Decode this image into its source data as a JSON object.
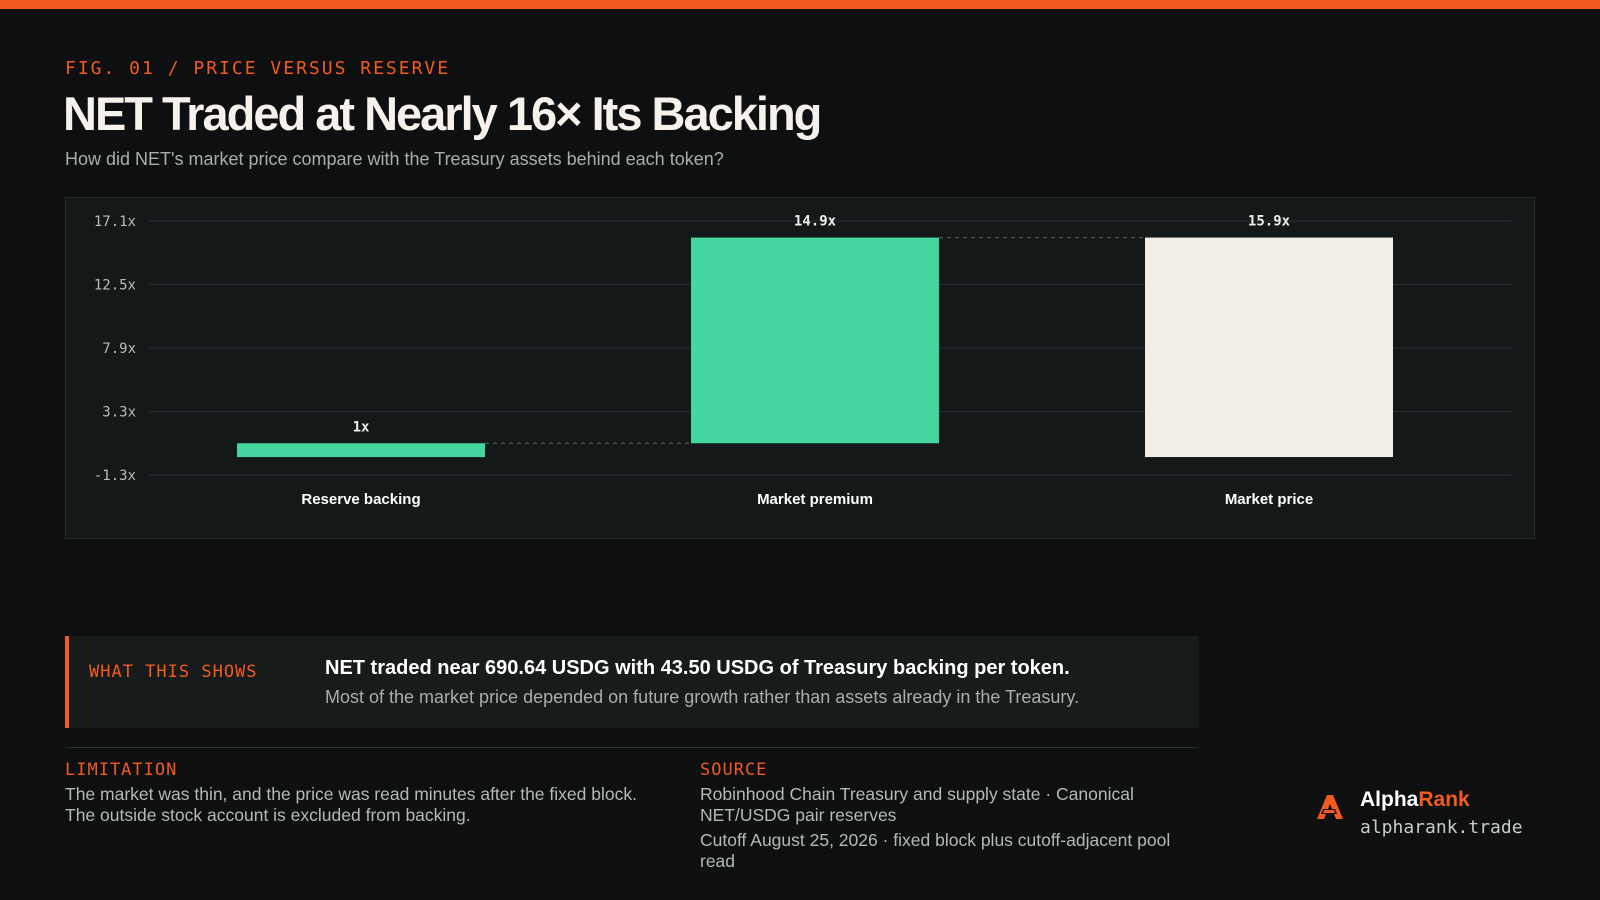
{
  "header": {
    "eyebrow": "FIG. 01 / PRICE VERSUS RESERVE",
    "title": "NET Traded at Nearly 16× Its Backing",
    "subtitle": "How did NET's market price compare with the Treasury assets behind each token?"
  },
  "chart_data": {
    "type": "bar",
    "subtype": "waterfall",
    "categories": [
      "Reserve backing",
      "Market premium",
      "Market price"
    ],
    "series": [
      {
        "values": [
          1,
          14.9,
          15.9
        ],
        "bars": [
          {
            "start": 0,
            "end": 1
          },
          {
            "start": 1,
            "end": 15.9
          },
          {
            "start": 0,
            "end": 15.9
          }
        ],
        "value_labels": [
          "1x",
          "14.9x",
          "15.9x"
        ],
        "colors": [
          "#45d6a0",
          "#45d6a0",
          "#f2ede6"
        ]
      }
    ],
    "y_ticks": [
      -1.3,
      3.3,
      7.9,
      12.5,
      17.1
    ],
    "y_tick_labels": [
      "-1.3x",
      "3.3x",
      "7.9x",
      "12.5x",
      "17.1x"
    ],
    "ylim": [
      -1.3,
      17.1
    ],
    "grid": true,
    "connectors": true,
    "title": "",
    "xlabel": "",
    "ylabel": ""
  },
  "callout": {
    "tag": "WHAT THIS SHOWS",
    "headline": "NET traded near 690.64 USDG with 43.50 USDG of Treasury backing per token.",
    "body": "Most of the market price depended on future growth rather than assets already in the Treasury."
  },
  "limitation": {
    "tag": "LIMITATION",
    "text": "The market was thin, and the price was read minutes after the fixed block. The outside stock account is excluded from backing."
  },
  "source": {
    "tag": "SOURCE",
    "line1": "Robinhood Chain Treasury and supply state · Canonical NET/USDG pair reserves",
    "line2": "Cutoff August 25, 2026 · fixed block plus cutoff-adjacent pool read"
  },
  "brand": {
    "name_part1": "Alpha",
    "name_part2": "Rank",
    "url": "alpharank.trade",
    "logo_icon": "alpharank-logo-icon"
  },
  "colors": {
    "accent": "#f25a1f",
    "bar_green": "#45d6a0",
    "bar_cream": "#f2ede6",
    "background": "#0d0f10"
  }
}
